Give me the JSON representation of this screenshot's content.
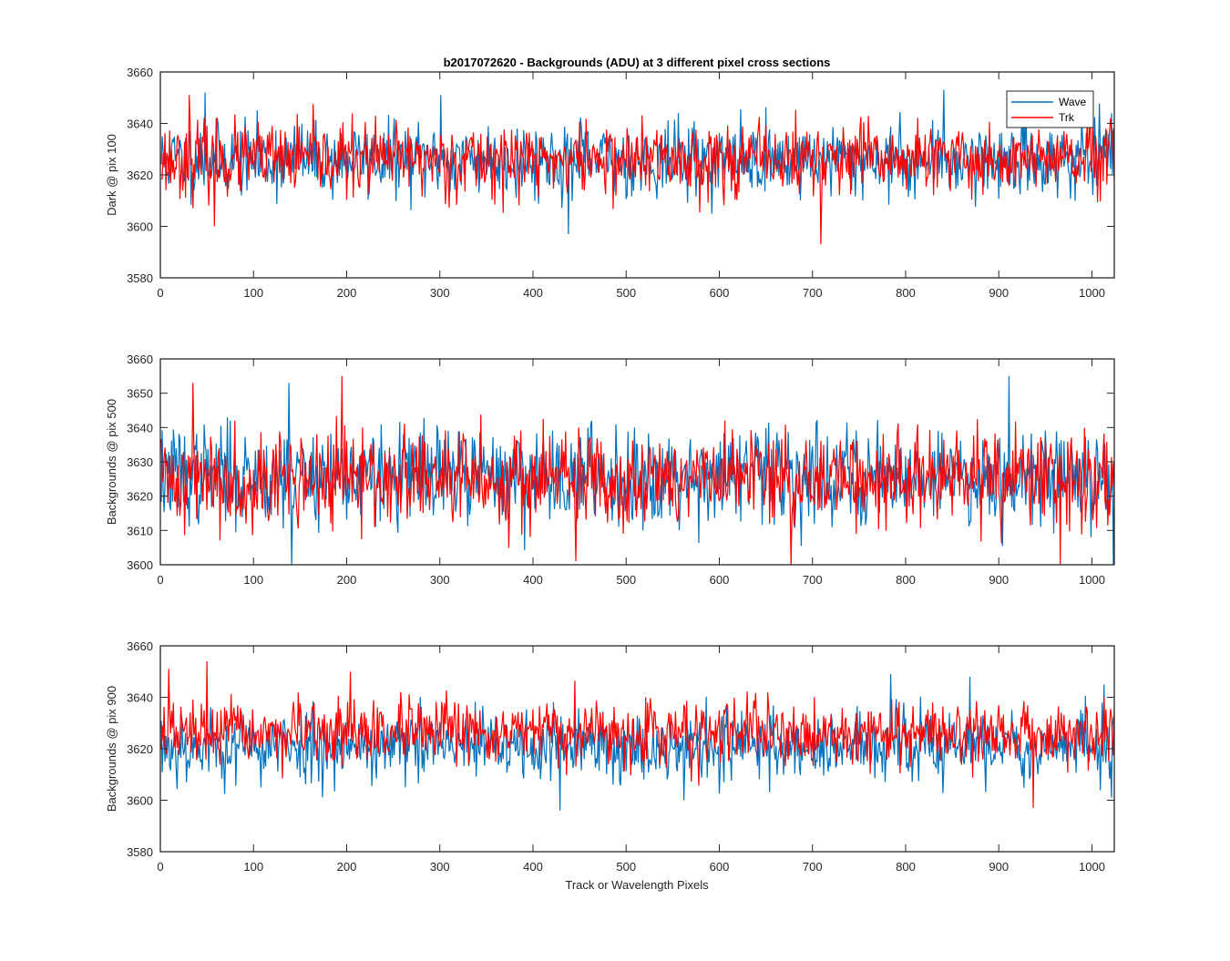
{
  "figure": {
    "xlabel": "Track or Wavelength Pixels",
    "background": "#ffffff"
  },
  "colors": {
    "wave": "#0072BD",
    "trk": "#FF0000",
    "axes": "#262626"
  },
  "chart_data": [
    {
      "type": "line",
      "title": "b2017072620 - Backgrounds (ADU) at 3 different pixel cross sections",
      "xlabel": "",
      "ylabel": "Dark @ pix 100",
      "xlim": [
        0,
        1024
      ],
      "ylim": [
        3580,
        3660
      ],
      "xticks": [
        0,
        100,
        200,
        300,
        400,
        500,
        600,
        700,
        800,
        900,
        1000
      ],
      "yticks": [
        3580,
        3600,
        3620,
        3640,
        3660
      ],
      "legend": {
        "placement": "top-right",
        "entries": [
          "Wave",
          "Trk"
        ]
      },
      "grid": false,
      "series": [
        {
          "name": "Wave",
          "color": "#0072BD",
          "mean": 3626,
          "spread": 7,
          "min": 3597,
          "max": 3653,
          "points": 1024,
          "seed": 11,
          "peaks": [
            [
              47,
              3652
            ],
            [
              300,
              3651
            ],
            [
              437,
              3597
            ],
            [
              840,
              3653
            ],
            [
              1020,
              3644
            ]
          ]
        },
        {
          "name": "Trk",
          "color": "#FF0000",
          "mean": 3626,
          "spread": 7,
          "min": 3593,
          "max": 3651,
          "points": 1024,
          "seed": 23,
          "peaks": [
            [
              30,
              3651
            ],
            [
              57,
              3600
            ],
            [
              708,
              3593
            ],
            [
              1019,
              3642
            ]
          ]
        }
      ]
    },
    {
      "type": "line",
      "title": "",
      "xlabel": "",
      "ylabel": "Backgrounds @ pix 500",
      "xlim": [
        0,
        1024
      ],
      "ylim": [
        3600,
        3660
      ],
      "xticks": [
        0,
        100,
        200,
        300,
        400,
        500,
        600,
        700,
        800,
        900,
        1000
      ],
      "yticks": [
        3600,
        3610,
        3620,
        3630,
        3640,
        3650,
        3660
      ],
      "grid": false,
      "series": [
        {
          "name": "Wave",
          "color": "#0072BD",
          "mean": 3626,
          "spread": 7,
          "min": 3600,
          "max": 3655,
          "points": 1024,
          "seed": 37,
          "peaks": [
            [
              137,
              3653
            ],
            [
              140,
              3600
            ],
            [
              910,
              3655
            ],
            [
              1022,
              3600
            ]
          ]
        },
        {
          "name": "Trk",
          "color": "#FF0000",
          "mean": 3625,
          "spread": 7,
          "min": 3600,
          "max": 3655,
          "points": 1024,
          "seed": 41,
          "peaks": [
            [
              34,
              3653
            ],
            [
              194,
              3655
            ],
            [
              445,
              3601
            ],
            [
              676,
              3600
            ],
            [
              965,
              3600
            ]
          ]
        }
      ]
    },
    {
      "type": "line",
      "title": "",
      "xlabel": "Track or Wavelength Pixels",
      "ylabel": "Backgrounds @ pix 900",
      "xlim": [
        0,
        1024
      ],
      "ylim": [
        3580,
        3660
      ],
      "xticks": [
        0,
        100,
        200,
        300,
        400,
        500,
        600,
        700,
        800,
        900,
        1000
      ],
      "yticks": [
        3580,
        3600,
        3620,
        3640,
        3660
      ],
      "grid": false,
      "series": [
        {
          "name": "Wave",
          "color": "#0072BD",
          "mean": 3621,
          "spread": 7,
          "min": 3596,
          "max": 3649,
          "points": 1024,
          "seed": 53,
          "peaks": [
            [
              428,
              3596
            ],
            [
              783,
              3649
            ],
            [
              868,
              3648
            ],
            [
              1012,
              3645
            ]
          ]
        },
        {
          "name": "Trk",
          "color": "#FF0000",
          "mean": 3626,
          "spread": 6,
          "min": 3597,
          "max": 3654,
          "points": 1024,
          "seed": 67,
          "peaks": [
            [
              8,
              3651
            ],
            [
              49,
              3654
            ],
            [
              203,
              3650
            ],
            [
              936,
              3597
            ]
          ]
        }
      ]
    }
  ]
}
